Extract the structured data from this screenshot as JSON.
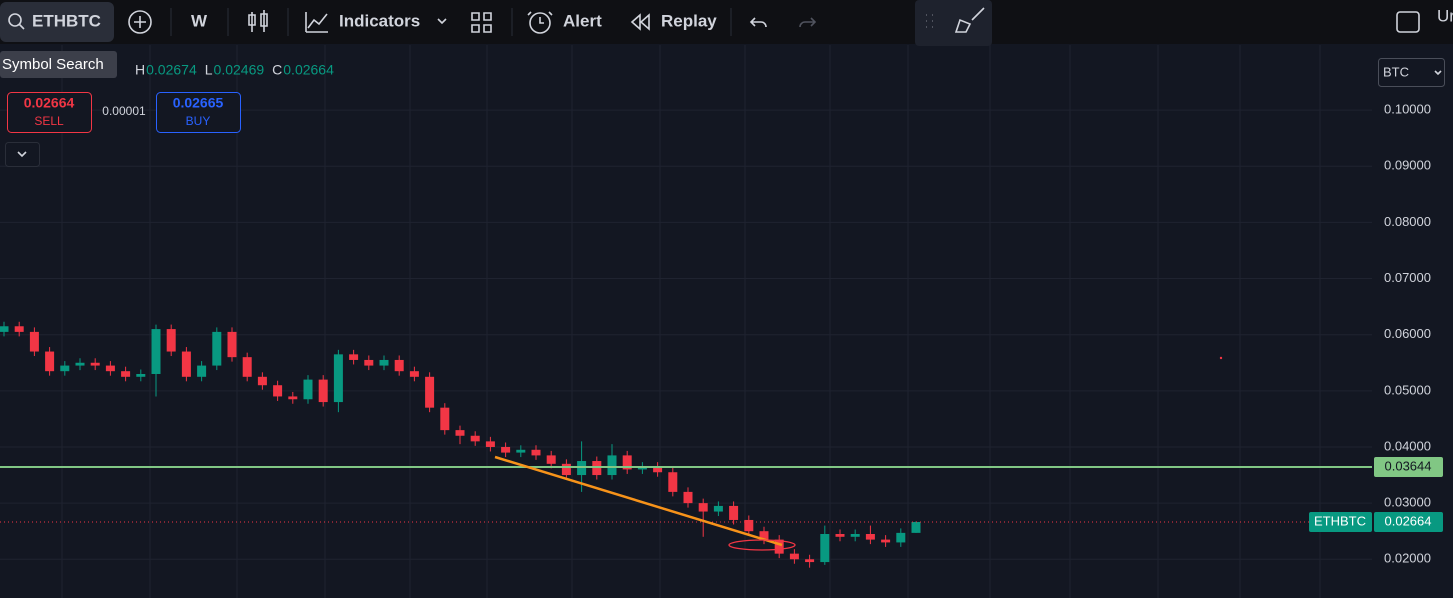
{
  "toolbar": {
    "symbol": "ETHBTC",
    "interval": "W",
    "indicators": "Indicators",
    "alert": "Alert",
    "replay": "Replay",
    "cut_off": "Ur"
  },
  "tooltip": "Symbol Search",
  "legend": [
    {
      "key": "H",
      "value": "0.02674"
    },
    {
      "key": "L",
      "value": "0.02469"
    },
    {
      "key": "C",
      "value": "0.02664"
    }
  ],
  "trade": {
    "sell_price": "0.02664",
    "sell": "SELL",
    "spread": "0.00001",
    "buy_price": "0.02665",
    "buy": "BUY"
  },
  "currency": "BTC",
  "chart_data": {
    "type": "candlestick",
    "categories": [
      null,
      null,
      null,
      null,
      null,
      null,
      null,
      null,
      null,
      null,
      null,
      null,
      null,
      null,
      null,
      null,
      null,
      null,
      null,
      null,
      null,
      null,
      null,
      null,
      null,
      null,
      null,
      null,
      null,
      null,
      null,
      null,
      null,
      null,
      null,
      null,
      null,
      null,
      null,
      null,
      null,
      null,
      null,
      null,
      null,
      null,
      null,
      null,
      null,
      null,
      null,
      null,
      null,
      null,
      null,
      null,
      null,
      null,
      null,
      null,
      null
    ],
    "open": [
      0.0605,
      0.0615,
      0.0605,
      0.057,
      0.0535,
      0.0545,
      0.055,
      0.0545,
      0.0535,
      0.0525,
      0.053,
      0.061,
      0.057,
      0.0525,
      0.0545,
      0.0605,
      0.056,
      0.0525,
      0.051,
      0.049,
      0.0485,
      0.052,
      0.048,
      0.0565,
      0.0555,
      0.0545,
      0.0555,
      0.0535,
      0.0525,
      0.047,
      0.043,
      0.042,
      0.041,
      0.04,
      0.039,
      0.0395,
      0.0385,
      0.037,
      0.035,
      0.0375,
      0.035,
      0.0385,
      0.036,
      0.0365,
      0.0355,
      0.032,
      0.03,
      0.0285,
      0.0295,
      0.027,
      0.025,
      0.0235,
      0.021,
      0.02,
      0.0195,
      0.0245,
      0.024,
      0.0245,
      0.0235,
      0.023,
      0.0247
    ],
    "high": [
      0.0623,
      0.0623,
      0.0613,
      0.0578,
      0.0553,
      0.0558,
      0.0558,
      0.0553,
      0.0543,
      0.0538,
      0.0618,
      0.0618,
      0.0578,
      0.0553,
      0.0613,
      0.0613,
      0.0568,
      0.0533,
      0.0518,
      0.0498,
      0.0528,
      0.0528,
      0.0573,
      0.0573,
      0.0563,
      0.0563,
      0.0563,
      0.0543,
      0.0533,
      0.0478,
      0.0438,
      0.0428,
      0.0418,
      0.0408,
      0.0403,
      0.0403,
      0.0393,
      0.0378,
      0.041,
      0.0383,
      0.0405,
      0.0393,
      0.0373,
      0.0373,
      0.0363,
      0.0328,
      0.0308,
      0.0303,
      0.0303,
      0.0278,
      0.0258,
      0.0243,
      0.0218,
      0.0208,
      0.026,
      0.0253,
      0.0253,
      0.026,
      0.0243,
      0.0255,
      0.02674
    ],
    "low": [
      0.0597,
      0.0597,
      0.0562,
      0.0527,
      0.0527,
      0.0537,
      0.0537,
      0.0527,
      0.0517,
      0.0517,
      0.049,
      0.0562,
      0.0517,
      0.0517,
      0.0537,
      0.0552,
      0.0517,
      0.0502,
      0.0482,
      0.0477,
      0.0477,
      0.0472,
      0.0462,
      0.0547,
      0.0537,
      0.0537,
      0.0527,
      0.0517,
      0.0462,
      0.0422,
      0.0405,
      0.0402,
      0.0392,
      0.0382,
      0.0382,
      0.0377,
      0.0362,
      0.0342,
      0.032,
      0.0342,
      0.0342,
      0.0352,
      0.0352,
      0.0347,
      0.0312,
      0.0292,
      0.024,
      0.0277,
      0.0262,
      0.0242,
      0.0227,
      0.0202,
      0.0192,
      0.0185,
      0.019,
      0.0232,
      0.0232,
      0.0227,
      0.0222,
      0.0222,
      0.02469
    ],
    "close": [
      0.0615,
      0.0605,
      0.057,
      0.0535,
      0.0545,
      0.055,
      0.0545,
      0.0535,
      0.0525,
      0.053,
      0.061,
      0.057,
      0.0525,
      0.0545,
      0.0605,
      0.056,
      0.0525,
      0.051,
      0.049,
      0.0485,
      0.052,
      0.048,
      0.0565,
      0.0555,
      0.0545,
      0.0555,
      0.0535,
      0.0525,
      0.047,
      0.043,
      0.042,
      0.041,
      0.04,
      0.039,
      0.0395,
      0.0385,
      0.037,
      0.035,
      0.0375,
      0.035,
      0.0385,
      0.036,
      0.0365,
      0.0355,
      0.032,
      0.03,
      0.0285,
      0.0295,
      0.027,
      0.025,
      0.0235,
      0.021,
      0.02,
      0.0195,
      0.0245,
      0.024,
      0.0245,
      0.0235,
      0.023,
      0.0247,
      0.02664
    ],
    "up_color": "#089981",
    "down_color": "#f23645",
    "ylim": [
      0.0131,
      0.1116
    ],
    "yticks": [
      {
        "value": 0.1,
        "label": "0.10000"
      },
      {
        "value": 0.09,
        "label": "0.09000"
      },
      {
        "value": 0.08,
        "label": "0.08000"
      },
      {
        "value": 0.07,
        "label": "0.07000"
      },
      {
        "value": 0.06,
        "label": "0.06000"
      },
      {
        "value": 0.05,
        "label": "0.05000"
      },
      {
        "value": 0.04,
        "label": "0.04000"
      },
      {
        "value": 0.03,
        "label": "0.03000"
      },
      {
        "value": 0.02,
        "label": "0.02000"
      }
    ],
    "grid": true,
    "horizontal_line": {
      "value": 0.03644,
      "color": "#81c784"
    },
    "last_price": {
      "name": "ETHBTC",
      "value": 0.02664
    }
  }
}
